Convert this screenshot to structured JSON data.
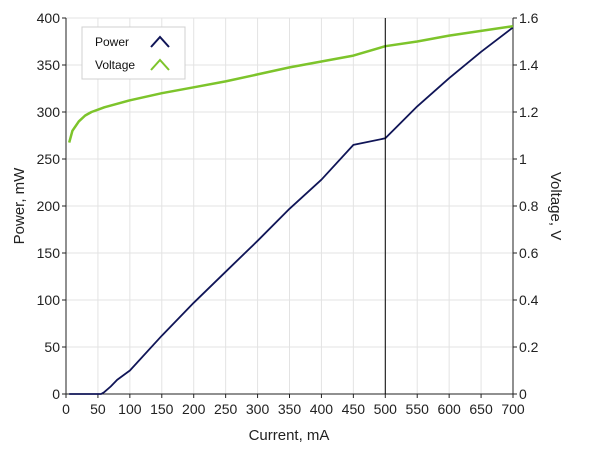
{
  "chart_data": {
    "type": "line",
    "xlabel": "Current, mA",
    "ylabel_left": "Power, mW",
    "ylabel_right": "Voltage, V",
    "xlim": [
      0,
      700
    ],
    "ylim_left": [
      0,
      400
    ],
    "ylim_right": [
      0,
      1.6
    ],
    "x_ticks": [
      0,
      50,
      100,
      150,
      200,
      250,
      300,
      350,
      400,
      450,
      500,
      550,
      600,
      650,
      700
    ],
    "y_left_ticks": [
      0,
      50,
      100,
      150,
      200,
      250,
      300,
      350,
      400
    ],
    "y_right_ticks": [
      0,
      0.2,
      0.4,
      0.6,
      0.8,
      1,
      1.2,
      1.4,
      1.6
    ],
    "grid": true,
    "legend_position": "top-left",
    "cursor_x": 500,
    "series": [
      {
        "name": "Power",
        "axis": "left",
        "color": "#101557",
        "x": [
          5,
          20,
          40,
          55,
          60,
          70,
          80,
          100,
          150,
          200,
          250,
          300,
          350,
          400,
          450,
          500,
          550,
          600,
          650,
          700
        ],
        "y": [
          0,
          0,
          0,
          0,
          2,
          8,
          15,
          25,
          62,
          97,
          130,
          163,
          197,
          228,
          265,
          272,
          306,
          336,
          364,
          390
        ]
      },
      {
        "name": "Voltage",
        "axis": "right",
        "color": "#7dc42b",
        "x": [
          5,
          10,
          20,
          30,
          40,
          50,
          60,
          80,
          100,
          150,
          200,
          250,
          300,
          350,
          400,
          450,
          500,
          550,
          600,
          650,
          700
        ],
        "y": [
          1.07,
          1.12,
          1.16,
          1.185,
          1.2,
          1.21,
          1.22,
          1.235,
          1.25,
          1.28,
          1.305,
          1.33,
          1.36,
          1.39,
          1.415,
          1.44,
          1.48,
          1.5,
          1.525,
          1.545,
          1.565
        ]
      }
    ]
  }
}
